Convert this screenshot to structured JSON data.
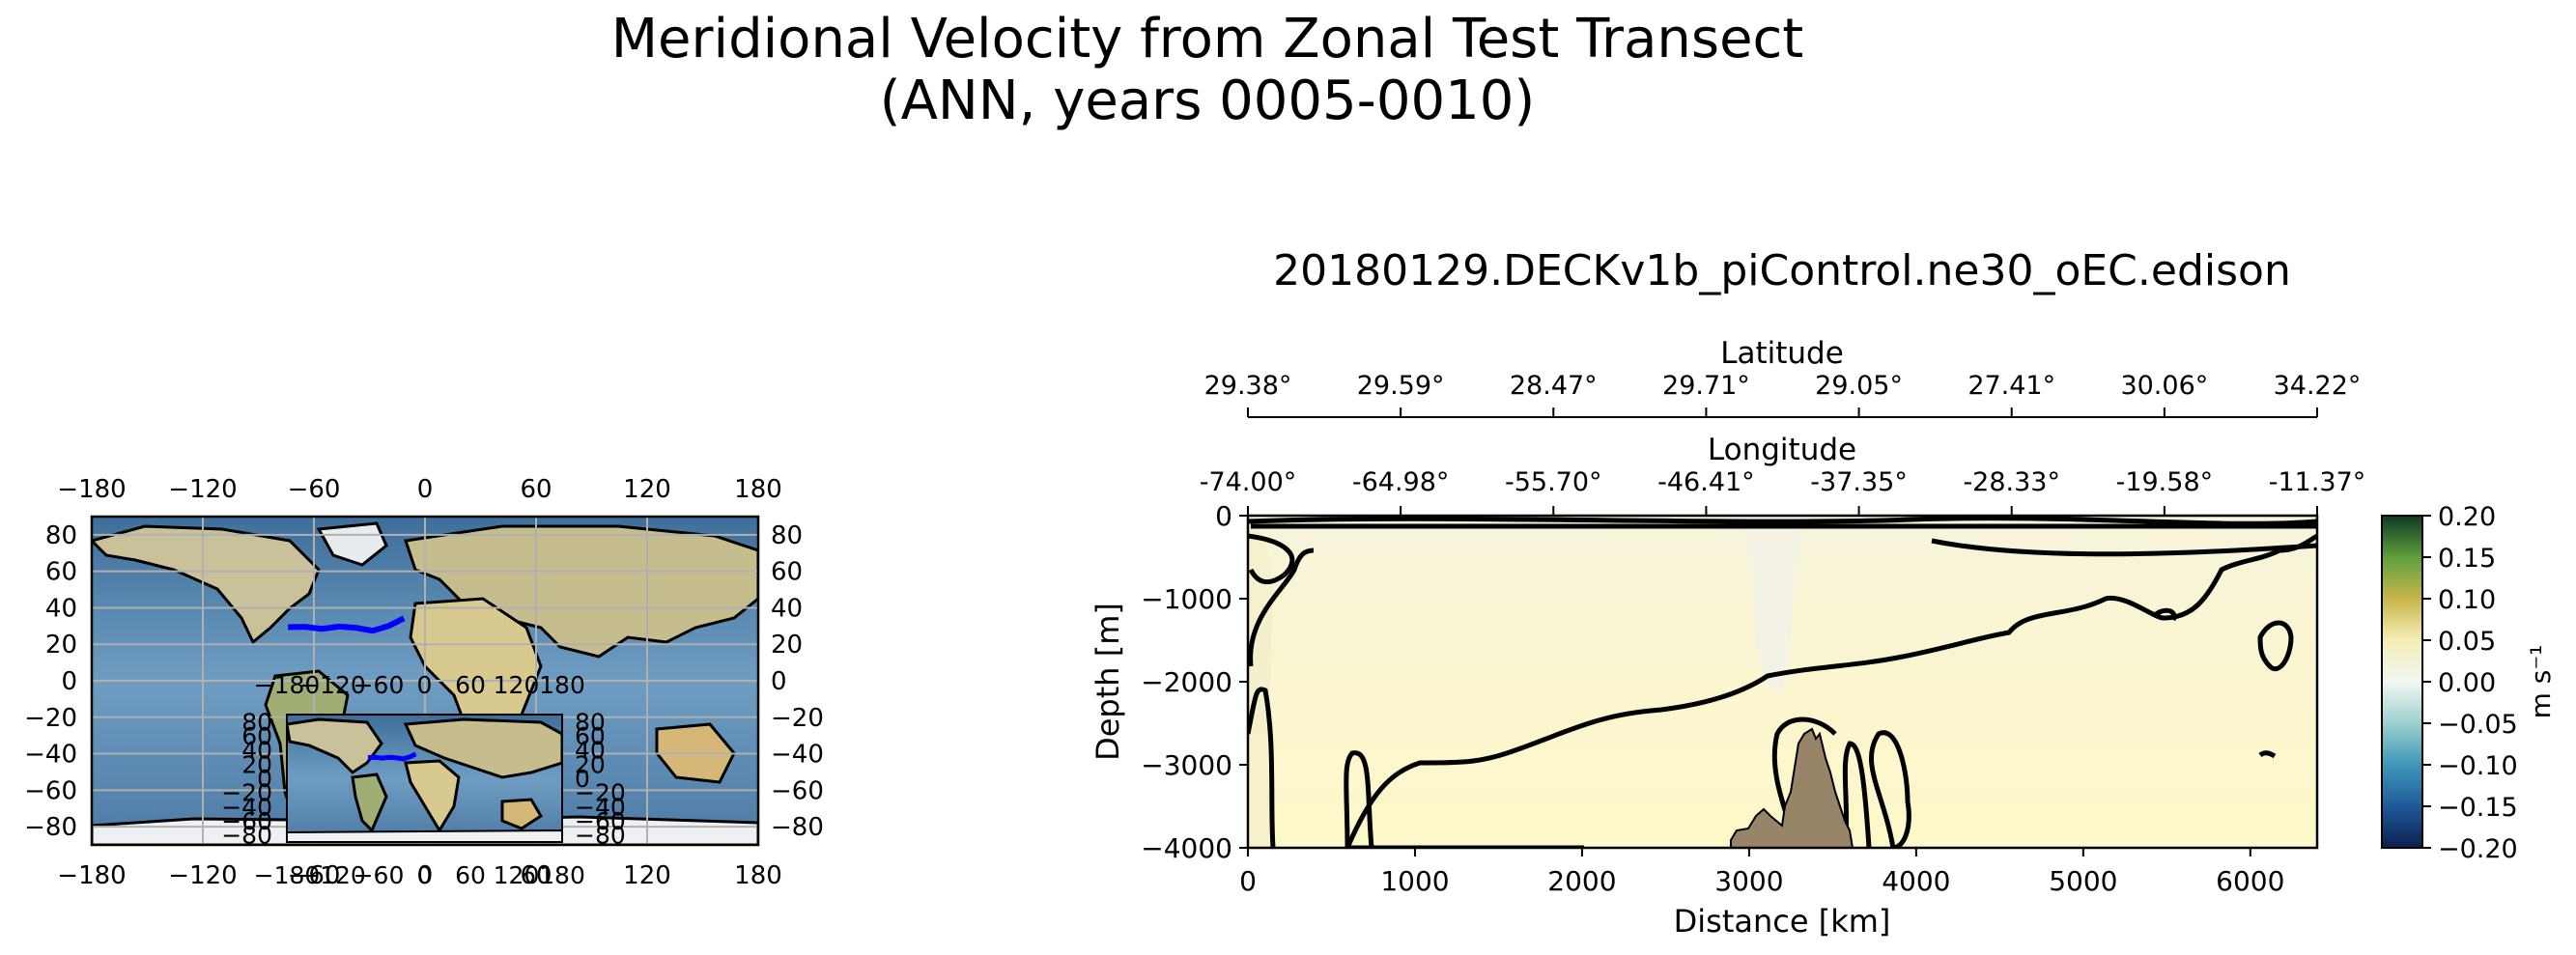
{
  "figure": {
    "title_line1": "Meridional Velocity from Zonal Test Transect",
    "title_line2": "(ANN, years 0005-0010)"
  },
  "chart_data": [
    {
      "type": "map",
      "name": "transect location map",
      "lon_ticks": [
        "−180",
        "−120",
        "−60",
        "0",
        "60",
        "120",
        "180"
      ],
      "lat_ticks_left": [
        "80",
        "60",
        "40",
        "20",
        "0",
        "−20",
        "−40",
        "−60",
        "−80"
      ],
      "lat_ticks_right": [
        "80",
        "60",
        "40",
        "20",
        "0",
        "−20",
        "−40",
        "−60",
        "−80"
      ],
      "lon_range": [
        -180,
        180
      ],
      "lat_range": [
        -90,
        90
      ],
      "grid": true,
      "transect": {
        "color": "#0000ff",
        "lon": [
          -74.0,
          -64.98,
          -55.7,
          -46.41,
          -37.35,
          -28.33,
          -19.58,
          -11.37
        ],
        "lat": [
          29.38,
          29.59,
          28.47,
          29.71,
          29.05,
          27.41,
          30.06,
          34.22
        ]
      },
      "inset": {
        "lon_ticks": [
          "−180",
          "−120",
          "−60",
          "0",
          "60",
          "120",
          "180"
        ],
        "lat_ticks": [
          "80",
          "60",
          "40",
          "20",
          "0",
          "−20",
          "−40",
          "−60",
          "−80"
        ]
      }
    },
    {
      "type": "heatmap",
      "name": "transect section",
      "title": "20180129.DECKv1b_piControl.ne30_oEC.edison",
      "xlabel": "Distance [km]",
      "ylabel": "Depth [m]",
      "xlim": [
        0,
        6400
      ],
      "ylim": [
        -4000,
        0
      ],
      "x_ticks": [
        0,
        1000,
        2000,
        3000,
        4000,
        5000,
        6000
      ],
      "y_ticks": [
        0,
        -1000,
        -2000,
        -3000,
        -4000
      ],
      "y_tick_labels": [
        "0",
        "−1000",
        "−2000",
        "−3000",
        "−4000"
      ],
      "top_axis_latitude": {
        "label": "Latitude",
        "ticks": [
          "29.38°",
          "29.59°",
          "28.47°",
          "29.71°",
          "29.05°",
          "27.41°",
          "30.06°",
          "34.22°"
        ]
      },
      "top_axis_longitude": {
        "label": "Longitude",
        "ticks": [
          "-74.00°",
          "-64.98°",
          "-55.70°",
          "-46.41°",
          "-37.35°",
          "-28.33°",
          "-19.58°",
          "-11.37°"
        ]
      },
      "zero_contour": true,
      "colorbar": {
        "label": "m s⁻¹",
        "range": [
          -0.2,
          0.2
        ],
        "ticks": [
          "0.20",
          "0.15",
          "0.10",
          "0.05",
          "0.00",
          "−0.05",
          "−0.10",
          "−0.15",
          "−0.20"
        ],
        "colors": [
          "#0b1f4f",
          "#1f5a9a",
          "#3f97b8",
          "#9cd0cf",
          "#f2f7f2",
          "#f5eeb6",
          "#c8b64a",
          "#5e9f3e",
          "#0f3a22"
        ]
      },
      "bathymetry_color": "#978469"
    }
  ]
}
